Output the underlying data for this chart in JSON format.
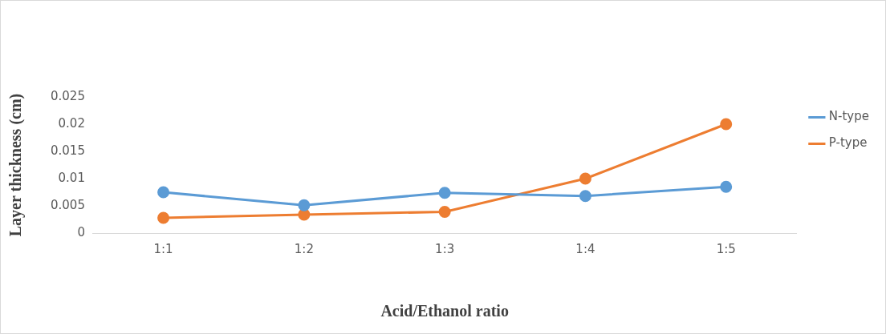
{
  "chart_data": {
    "type": "line",
    "xlabel": "Acid/Ethanol ratio",
    "ylabel": "Layer thickness (cm)",
    "categories": [
      "1:1",
      "1:2",
      "1:3",
      "1:4",
      "1:5"
    ],
    "series": [
      {
        "name": "N-type",
        "color": "#5b9bd5",
        "values": [
          0.0075,
          0.0051,
          0.0074,
          0.0068,
          0.0085
        ]
      },
      {
        "name": "P-type",
        "color": "#ed7d31",
        "values": [
          0.0028,
          0.0034,
          0.0039,
          0.01,
          0.02
        ]
      }
    ],
    "ylim": [
      0,
      0.025
    ],
    "yticks": [
      0,
      0.005,
      0.01,
      0.015,
      0.02,
      0.025
    ],
    "grid": false,
    "legend": "top right",
    "marker": "circle",
    "line_style": "solid"
  }
}
